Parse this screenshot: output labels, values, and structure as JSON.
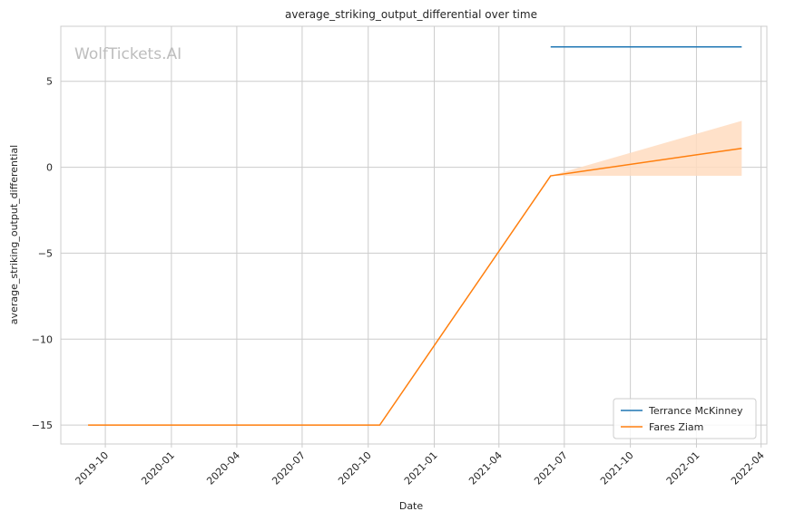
{
  "chart_data": {
    "type": "line",
    "title": "average_striking_output_differential over time",
    "xlabel": "Date",
    "ylabel": "average_striking_output_differential",
    "watermark": "WolfTickets.AI",
    "x_axis": "date",
    "xlim": [
      "2019-07-31",
      "2022-04-09"
    ],
    "ylim": [
      -16.1,
      8.2
    ],
    "x_ticks": [
      "2019-10",
      "2020-01",
      "2020-04",
      "2020-07",
      "2020-10",
      "2021-01",
      "2021-04",
      "2021-07",
      "2021-10",
      "2022-01",
      "2022-04"
    ],
    "y_ticks": [
      5,
      0,
      -5,
      -10,
      -15
    ],
    "y_tick_labels": [
      "5",
      "0",
      "−5",
      "−10",
      "−15"
    ],
    "grid": true,
    "legend_position": "bottom-right",
    "series": [
      {
        "name": "Terrance McKinney",
        "color": "#1f77b4",
        "points": [
          {
            "x": "2021-06-12",
            "y": 7.0
          },
          {
            "x": "2022-03-05",
            "y": 7.0
          }
        ]
      },
      {
        "name": "Fares Ziam",
        "color": "#ff7f0e",
        "band_color": "#ffdcc0",
        "points": [
          {
            "x": "2019-09-07",
            "y": -15.0
          },
          {
            "x": "2020-10-17",
            "y": -15.0
          },
          {
            "x": "2021-06-12",
            "y": -0.5
          },
          {
            "x": "2022-03-05",
            "y": 1.1
          }
        ],
        "band": [
          {
            "x": "2021-06-12",
            "low": -0.5,
            "high": -0.5
          },
          {
            "x": "2022-03-05",
            "low": -0.5,
            "high": 2.7
          }
        ]
      }
    ]
  }
}
